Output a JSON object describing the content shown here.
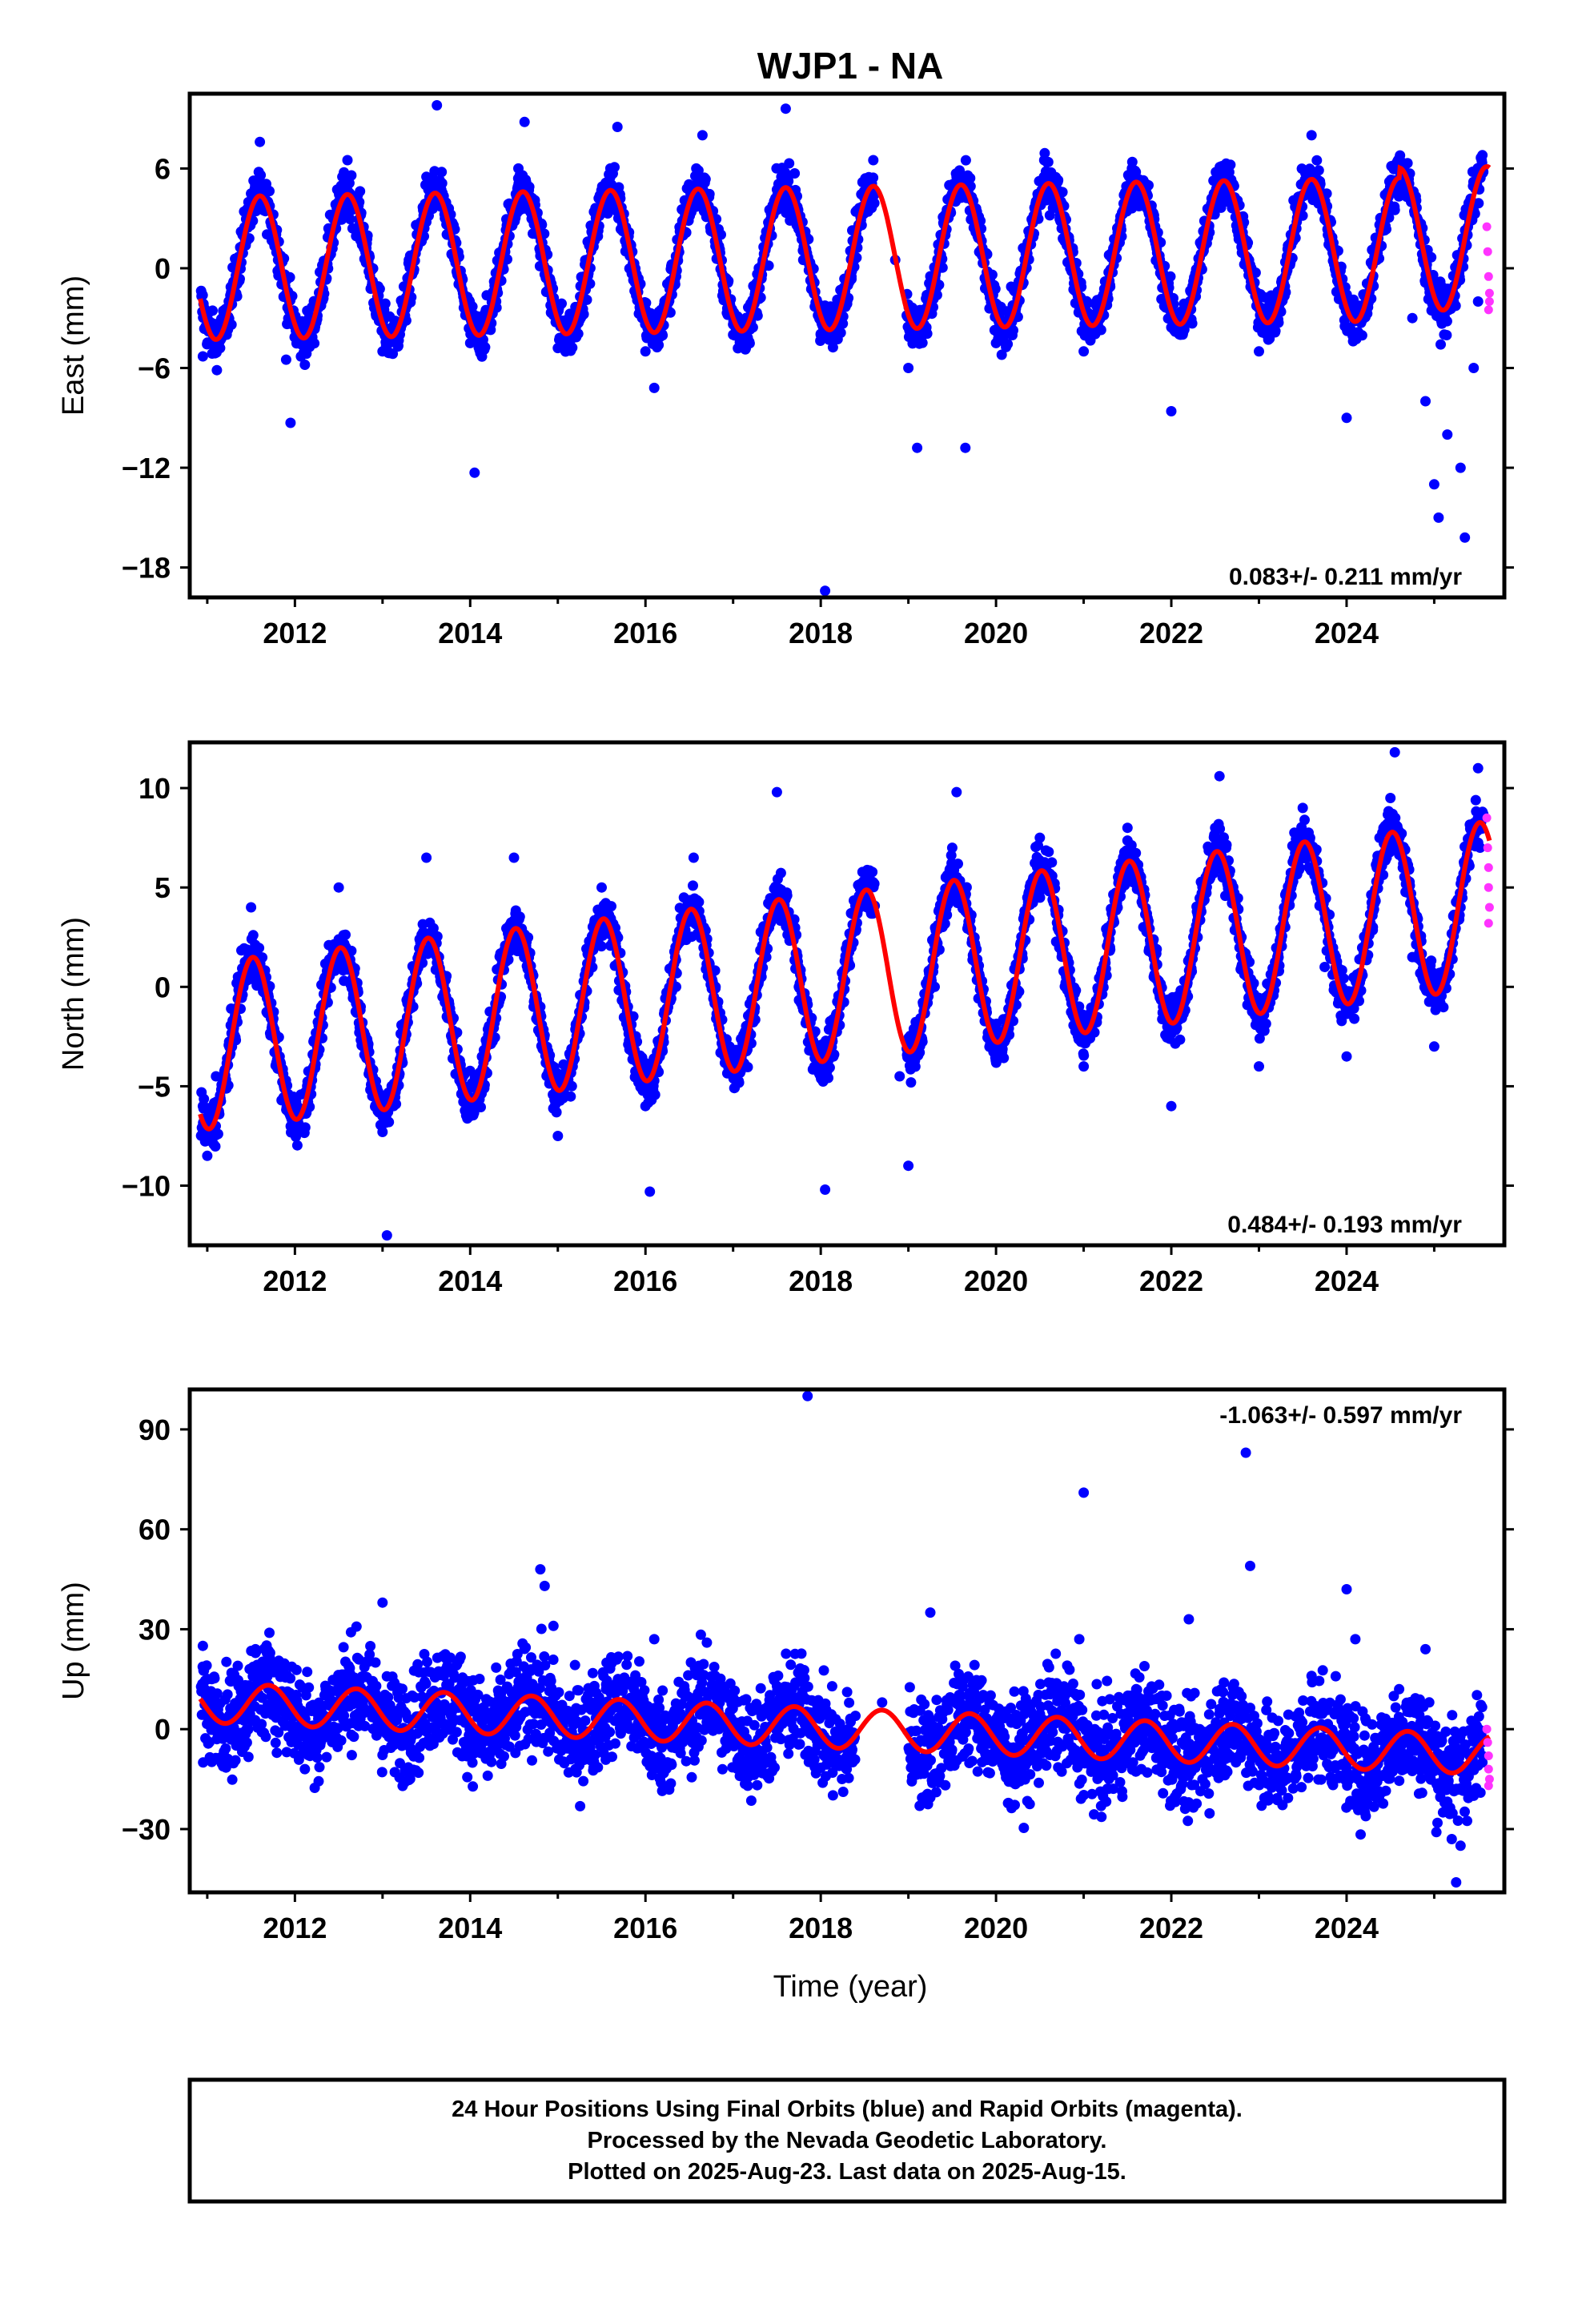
{
  "chart_data": {
    "type": "scatter",
    "title": "WJP1 - NA",
    "xlabel": "Time (year)",
    "xlim": [
      2010.8,
      2025.8
    ],
    "xticks": [
      2012,
      2014,
      2016,
      2018,
      2020,
      2022,
      2024
    ],
    "colors": {
      "final": "#0000ff",
      "rapid": "#ff33ff",
      "model": "#ff0000",
      "frame": "#000000"
    },
    "panels": [
      {
        "id": "east",
        "ylabel": "East (mm)",
        "ylim": [
          -19.8,
          10.5
        ],
        "yticks": [
          6,
          0,
          -6,
          -12,
          -18
        ],
        "rate_label": "0.083+/- 0.211 mm/yr",
        "rate_corner": "bottom-right",
        "model": {
          "offset": 0.0,
          "trend": 0.083,
          "amplitude": 4.3,
          "peak_phase": 0.6,
          "segments": [
            {
              "start": 2010.92,
              "offset": 0.0
            },
            {
              "start": 2024.6,
              "offset": 0.6
            }
          ]
        },
        "final_series": [
          {
            "x": 2010.95,
            "y": -5.3
          },
          {
            "x": 2011.1,
            "y": -3.8
          },
          {
            "x": 2011.3,
            "y": -0.8
          },
          {
            "x": 2011.5,
            "y": 4.5
          },
          {
            "x": 2011.6,
            "y": 7.6
          },
          {
            "x": 2011.8,
            "y": 1.0
          },
          {
            "x": 2011.9,
            "y": -5.5
          },
          {
            "x": 2011.95,
            "y": -9.3
          },
          {
            "x": 2012.3,
            "y": -0.8
          },
          {
            "x": 2012.5,
            "y": 4.0
          },
          {
            "x": 2012.6,
            "y": 6.5
          },
          {
            "x": 2012.8,
            "y": 1.2
          },
          {
            "x": 2013.0,
            "y": -5.0
          },
          {
            "x": 2013.3,
            "y": 0.5
          },
          {
            "x": 2013.5,
            "y": 5.5
          },
          {
            "x": 2013.62,
            "y": 9.8
          },
          {
            "x": 2013.75,
            "y": 3.5
          },
          {
            "x": 2014.0,
            "y": -4.5
          },
          {
            "x": 2014.05,
            "y": -12.3
          },
          {
            "x": 2014.3,
            "y": -1.0
          },
          {
            "x": 2014.55,
            "y": 6.0
          },
          {
            "x": 2014.62,
            "y": 8.8
          },
          {
            "x": 2014.8,
            "y": 1.0
          },
          {
            "x": 2015.0,
            "y": -4.8
          },
          {
            "x": 2015.3,
            "y": -0.5
          },
          {
            "x": 2015.6,
            "y": 6.0
          },
          {
            "x": 2015.68,
            "y": 8.5
          },
          {
            "x": 2015.85,
            "y": 1.0
          },
          {
            "x": 2016.0,
            "y": -5.0
          },
          {
            "x": 2016.1,
            "y": -7.2
          },
          {
            "x": 2016.35,
            "y": -0.5
          },
          {
            "x": 2016.58,
            "y": 6.0
          },
          {
            "x": 2016.65,
            "y": 8.0
          },
          {
            "x": 2016.85,
            "y": 0.5
          },
          {
            "x": 2017.0,
            "y": -4.0
          },
          {
            "x": 2017.3,
            "y": 0.0
          },
          {
            "x": 2017.55,
            "y": 5.5
          },
          {
            "x": 2017.6,
            "y": 9.6
          },
          {
            "x": 2017.8,
            "y": 0.5
          },
          {
            "x": 2018.0,
            "y": -4.0
          },
          {
            "x": 2018.05,
            "y": -19.4
          },
          {
            "x": 2018.35,
            "y": -0.5
          },
          {
            "x": 2018.6,
            "y": 6.5
          },
          {
            "x": 2018.85,
            "y": 0.5
          },
          {
            "x": 2019.0,
            "y": -6.0
          },
          {
            "x": 2019.1,
            "y": -10.8
          },
          {
            "x": 2019.35,
            "y": -1.0
          },
          {
            "x": 2019.55,
            "y": 5.5
          },
          {
            "x": 2019.65,
            "y": -10.8
          },
          {
            "x": 2019.85,
            "y": 1.0
          },
          {
            "x": 2020.0,
            "y": -4.5
          },
          {
            "x": 2020.3,
            "y": -1.0
          },
          {
            "x": 2020.55,
            "y": 6.5
          },
          {
            "x": 2020.85,
            "y": 0.5
          },
          {
            "x": 2021.0,
            "y": -5.0
          },
          {
            "x": 2021.3,
            "y": -1.0
          },
          {
            "x": 2021.55,
            "y": 6.0
          },
          {
            "x": 2021.85,
            "y": 0.5
          },
          {
            "x": 2022.0,
            "y": -8.6
          },
          {
            "x": 2022.3,
            "y": -0.5
          },
          {
            "x": 2022.6,
            "y": 6.0
          },
          {
            "x": 2022.85,
            "y": 0.5
          },
          {
            "x": 2023.0,
            "y": -5.0
          },
          {
            "x": 2023.3,
            "y": -0.5
          },
          {
            "x": 2023.6,
            "y": 8.0
          },
          {
            "x": 2023.85,
            "y": 1.0
          },
          {
            "x": 2024.0,
            "y": -9.0
          },
          {
            "x": 2024.3,
            "y": -1.0
          },
          {
            "x": 2024.55,
            "y": 3.5
          },
          {
            "x": 2024.75,
            "y": -3.0
          },
          {
            "x": 2024.9,
            "y": -8.0
          },
          {
            "x": 2025.0,
            "y": -13.0
          },
          {
            "x": 2025.05,
            "y": -15.0
          },
          {
            "x": 2025.15,
            "y": -10.0
          },
          {
            "x": 2025.3,
            "y": -12.0
          },
          {
            "x": 2025.35,
            "y": -16.2
          },
          {
            "x": 2025.45,
            "y": -6.0
          },
          {
            "x": 2025.5,
            "y": -2.0
          },
          {
            "x": 2025.55,
            "y": 6.8
          }
        ],
        "rapid_series": [
          {
            "x": 2025.6,
            "y": 2.5
          },
          {
            "x": 2025.61,
            "y": 1.0
          },
          {
            "x": 2025.62,
            "y": -0.5
          },
          {
            "x": 2025.63,
            "y": -1.5
          },
          {
            "x": 2025.63,
            "y": -2.0
          },
          {
            "x": 2025.62,
            "y": -2.5
          }
        ]
      },
      {
        "id": "north",
        "ylabel": "North (mm)",
        "ylim": [
          -13.0,
          12.3
        ],
        "yticks": [
          10,
          5,
          0,
          -5,
          -10
        ],
        "rate_label": "0.484+/- 0.193 mm/yr",
        "rate_corner": "bottom-right",
        "model": {
          "offset": -3.0,
          "trend": 0.484,
          "amplitude": 4.2,
          "peak_phase": 0.52,
          "segments": [
            {
              "start": 2010.92,
              "offset": -3.0
            }
          ]
        },
        "final_series": [
          {
            "x": 2010.95,
            "y": -6.0
          },
          {
            "x": 2011.0,
            "y": -8.5
          },
          {
            "x": 2011.1,
            "y": -4.5
          },
          {
            "x": 2011.35,
            "y": 0.5
          },
          {
            "x": 2011.5,
            "y": 4.0
          },
          {
            "x": 2011.7,
            "y": -0.5
          },
          {
            "x": 2011.95,
            "y": -6.5
          },
          {
            "x": 2012.3,
            "y": -1.0
          },
          {
            "x": 2012.5,
            "y": 5.0
          },
          {
            "x": 2012.75,
            "y": -1.0
          },
          {
            "x": 2013.0,
            "y": -6.5
          },
          {
            "x": 2013.05,
            "y": -12.5
          },
          {
            "x": 2013.35,
            "y": -1.0
          },
          {
            "x": 2013.5,
            "y": 6.5
          },
          {
            "x": 2013.75,
            "y": -1.0
          },
          {
            "x": 2014.0,
            "y": -6.5
          },
          {
            "x": 2014.35,
            "y": -0.5
          },
          {
            "x": 2014.5,
            "y": 6.5
          },
          {
            "x": 2014.8,
            "y": -1.0
          },
          {
            "x": 2015.0,
            "y": -7.5
          },
          {
            "x": 2015.3,
            "y": -1.0
          },
          {
            "x": 2015.5,
            "y": 5.0
          },
          {
            "x": 2015.8,
            "y": -1.0
          },
          {
            "x": 2016.0,
            "y": -6.0
          },
          {
            "x": 2016.05,
            "y": -10.3
          },
          {
            "x": 2016.35,
            "y": 0.0
          },
          {
            "x": 2016.55,
            "y": 6.5
          },
          {
            "x": 2016.8,
            "y": 0.0
          },
          {
            "x": 2017.0,
            "y": -4.5
          },
          {
            "x": 2017.3,
            "y": 1.0
          },
          {
            "x": 2017.5,
            "y": 9.8
          },
          {
            "x": 2017.75,
            "y": 0.0
          },
          {
            "x": 2018.0,
            "y": -4.5
          },
          {
            "x": 2018.05,
            "y": -10.2
          },
          {
            "x": 2018.55,
            "y": 4.5
          },
          {
            "x": 2018.9,
            "y": -4.5
          },
          {
            "x": 2019.0,
            "y": -9.0
          },
          {
            "x": 2019.3,
            "y": 0.0
          },
          {
            "x": 2019.5,
            "y": 7.0
          },
          {
            "x": 2019.55,
            "y": 9.8
          },
          {
            "x": 2019.8,
            "y": 0.5
          },
          {
            "x": 2020.0,
            "y": -3.5
          },
          {
            "x": 2020.3,
            "y": 1.5
          },
          {
            "x": 2020.5,
            "y": 7.5
          },
          {
            "x": 2020.8,
            "y": 0.5
          },
          {
            "x": 2021.0,
            "y": -4.0
          },
          {
            "x": 2021.3,
            "y": 2.0
          },
          {
            "x": 2021.5,
            "y": 8.0
          },
          {
            "x": 2021.8,
            "y": 0.5
          },
          {
            "x": 2022.0,
            "y": -6.0
          },
          {
            "x": 2022.3,
            "y": 2.5
          },
          {
            "x": 2022.5,
            "y": 8.0
          },
          {
            "x": 2022.55,
            "y": 10.6
          },
          {
            "x": 2022.8,
            "y": 1.0
          },
          {
            "x": 2023.0,
            "y": -4.0
          },
          {
            "x": 2023.3,
            "y": 3.0
          },
          {
            "x": 2023.5,
            "y": 9.0
          },
          {
            "x": 2023.75,
            "y": 1.0
          },
          {
            "x": 2024.0,
            "y": -3.5
          },
          {
            "x": 2024.3,
            "y": 3.0
          },
          {
            "x": 2024.5,
            "y": 9.5
          },
          {
            "x": 2024.55,
            "y": 11.8
          },
          {
            "x": 2024.75,
            "y": 1.5
          },
          {
            "x": 2025.0,
            "y": -3.0
          },
          {
            "x": 2025.3,
            "y": 4.0
          },
          {
            "x": 2025.5,
            "y": 11.0
          }
        ],
        "rapid_series": [
          {
            "x": 2025.6,
            "y": 8.5
          },
          {
            "x": 2025.61,
            "y": 7.0
          },
          {
            "x": 2025.62,
            "y": 6.0
          },
          {
            "x": 2025.62,
            "y": 5.0
          },
          {
            "x": 2025.63,
            "y": 4.0
          },
          {
            "x": 2025.62,
            "y": 3.2
          }
        ]
      },
      {
        "id": "up",
        "ylabel": "Up (mm)",
        "ylim": [
          -49.0,
          102.0
        ],
        "yticks": [
          90,
          60,
          30,
          0,
          -30
        ],
        "rate_label": "-1.063+/- 0.597 mm/yr",
        "rate_corner": "top-right",
        "model": {
          "offset": 8.0,
          "trend": -1.063,
          "amplitude": 6.0,
          "peak_phase": 0.7,
          "segments": [
            {
              "start": 2010.92,
              "offset": 8.0
            }
          ]
        },
        "final_series": [
          {
            "x": 2010.95,
            "y": 25.0
          },
          {
            "x": 2011.05,
            "y": 15.0
          },
          {
            "x": 2011.3,
            "y": -1.0
          },
          {
            "x": 2011.55,
            "y": 24.0
          },
          {
            "x": 2011.8,
            "y": 8.0
          },
          {
            "x": 2012.3,
            "y": -2.0
          },
          {
            "x": 2012.5,
            "y": 14.0
          },
          {
            "x": 2012.9,
            "y": 10.0
          },
          {
            "x": 2013.0,
            "y": 38.0
          },
          {
            "x": 2013.3,
            "y": -5.0
          },
          {
            "x": 2013.7,
            "y": 16.0
          },
          {
            "x": 2014.0,
            "y": 10.0
          },
          {
            "x": 2014.2,
            "y": -14.0
          },
          {
            "x": 2014.5,
            "y": 5.0
          },
          {
            "x": 2014.75,
            "y": 18.0
          },
          {
            "x": 2014.8,
            "y": 48.0
          },
          {
            "x": 2014.85,
            "y": 43.0
          },
          {
            "x": 2014.95,
            "y": 31.0
          },
          {
            "x": 2015.2,
            "y": -12.0
          },
          {
            "x": 2015.55,
            "y": 12.0
          },
          {
            "x": 2015.9,
            "y": 8.0
          },
          {
            "x": 2016.1,
            "y": 27.0
          },
          {
            "x": 2016.25,
            "y": -10.0
          },
          {
            "x": 2016.7,
            "y": 26.0
          },
          {
            "x": 2017.2,
            "y": -8.0
          },
          {
            "x": 2017.6,
            "y": 10.0
          },
          {
            "x": 2017.85,
            "y": 100.0
          },
          {
            "x": 2018.2,
            "y": -6.0
          },
          {
            "x": 2018.7,
            "y": 8.0
          },
          {
            "x": 2019.2,
            "y": -20.0
          },
          {
            "x": 2019.25,
            "y": 35.0
          },
          {
            "x": 2019.6,
            "y": 10.0
          },
          {
            "x": 2020.2,
            "y": -12.0
          },
          {
            "x": 2020.6,
            "y": 14.0
          },
          {
            "x": 2020.95,
            "y": 27.0
          },
          {
            "x": 2021.0,
            "y": 71.0
          },
          {
            "x": 2021.2,
            "y": -14.0
          },
          {
            "x": 2021.6,
            "y": 12.0
          },
          {
            "x": 2022.2,
            "y": -14.0
          },
          {
            "x": 2022.2,
            "y": 33.0
          },
          {
            "x": 2022.6,
            "y": 14.0
          },
          {
            "x": 2022.85,
            "y": 83.0
          },
          {
            "x": 2022.9,
            "y": 49.0
          },
          {
            "x": 2023.2,
            "y": -15.0
          },
          {
            "x": 2023.6,
            "y": 16.0
          },
          {
            "x": 2024.0,
            "y": 42.0
          },
          {
            "x": 2024.1,
            "y": 27.0
          },
          {
            "x": 2024.2,
            "y": -18.0
          },
          {
            "x": 2024.6,
            "y": 12.0
          },
          {
            "x": 2024.9,
            "y": 24.0
          },
          {
            "x": 2025.1,
            "y": -25.0
          },
          {
            "x": 2025.2,
            "y": -33.0
          },
          {
            "x": 2025.3,
            "y": -35.0
          },
          {
            "x": 2025.25,
            "y": -46.0
          },
          {
            "x": 2025.45,
            "y": -20.0
          },
          {
            "x": 2025.55,
            "y": -10.0
          }
        ],
        "rapid_series": [
          {
            "x": 2025.6,
            "y": 0.0
          },
          {
            "x": 2025.61,
            "y": -4.0
          },
          {
            "x": 2025.62,
            "y": -8.0
          },
          {
            "x": 2025.62,
            "y": -12.0
          },
          {
            "x": 2025.63,
            "y": -15.0
          },
          {
            "x": 2025.62,
            "y": -17.0
          }
        ]
      }
    ],
    "caption": [
      "24 Hour Positions Using Final Orbits (blue) and Rapid Orbits (magenta).",
      "Processed by the Nevada Geodetic Laboratory.",
      "Plotted on 2025-Aug-23. Last data on 2025-Aug-15."
    ]
  }
}
